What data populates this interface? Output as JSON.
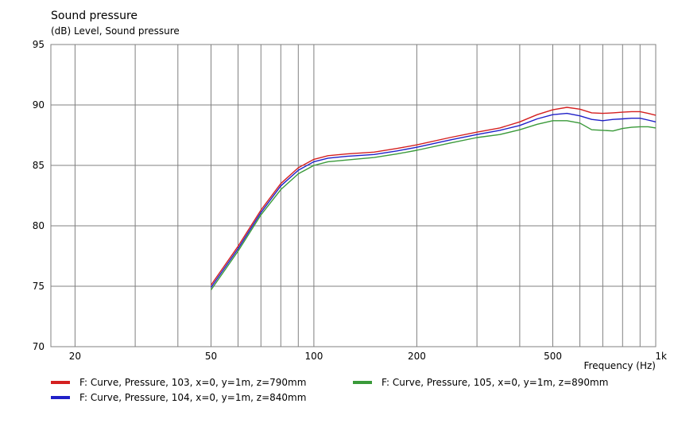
{
  "chart_data": {
    "type": "line",
    "title": "Sound pressure",
    "subtitle": "(dB)  Level, Sound pressure",
    "xlabel": "Frequency  (Hz)",
    "xscale": "log",
    "xlim": [
      17,
      1000
    ],
    "ylim": [
      70,
      95
    ],
    "grid": true,
    "legend_position": "bottom",
    "x_ticks": [
      {
        "value": 20,
        "label": "20"
      },
      {
        "value": 50,
        "label": "50"
      },
      {
        "value": 100,
        "label": "100"
      },
      {
        "value": 200,
        "label": "200"
      },
      {
        "value": 500,
        "label": "500"
      },
      {
        "value": 1000,
        "label": "1k"
      }
    ],
    "y_ticks": [
      {
        "value": 70,
        "label": "70"
      },
      {
        "value": 75,
        "label": "75"
      },
      {
        "value": 80,
        "label": "80"
      },
      {
        "value": 85,
        "label": "85"
      },
      {
        "value": 90,
        "label": "90"
      },
      {
        "value": 95,
        "label": "95"
      }
    ],
    "x_gridlines": [
      20,
      30,
      40,
      50,
      60,
      70,
      80,
      90,
      100,
      200,
      300,
      400,
      500,
      600,
      700,
      800,
      900
    ],
    "series": [
      {
        "name": "F: Curve, Pressure, 103, x=0, y=1m, z=790mm",
        "color": "#d42020",
        "points": [
          [
            50,
            75.1
          ],
          [
            60,
            78.3
          ],
          [
            70,
            81.3
          ],
          [
            80,
            83.5
          ],
          [
            90,
            84.8
          ],
          [
            100,
            85.5
          ],
          [
            110,
            85.8
          ],
          [
            125,
            85.95
          ],
          [
            150,
            86.1
          ],
          [
            175,
            86.4
          ],
          [
            200,
            86.7
          ],
          [
            250,
            87.3
          ],
          [
            300,
            87.75
          ],
          [
            350,
            88.1
          ],
          [
            400,
            88.6
          ],
          [
            450,
            89.2
          ],
          [
            500,
            89.6
          ],
          [
            550,
            89.8
          ],
          [
            600,
            89.65
          ],
          [
            650,
            89.35
          ],
          [
            700,
            89.3
          ],
          [
            750,
            89.35
          ],
          [
            800,
            89.4
          ],
          [
            850,
            89.45
          ],
          [
            900,
            89.45
          ],
          [
            950,
            89.3
          ],
          [
            1000,
            89.15
          ]
        ]
      },
      {
        "name": "F: Curve, Pressure, 104, x=0, y=1m, z=840mm",
        "color": "#2020c8",
        "points": [
          [
            50,
            74.9
          ],
          [
            60,
            78.1
          ],
          [
            70,
            81.1
          ],
          [
            80,
            83.3
          ],
          [
            90,
            84.6
          ],
          [
            100,
            85.3
          ],
          [
            110,
            85.6
          ],
          [
            125,
            85.75
          ],
          [
            150,
            85.9
          ],
          [
            175,
            86.2
          ],
          [
            200,
            86.5
          ],
          [
            250,
            87.1
          ],
          [
            300,
            87.55
          ],
          [
            350,
            87.9
          ],
          [
            400,
            88.3
          ],
          [
            450,
            88.85
          ],
          [
            500,
            89.2
          ],
          [
            550,
            89.3
          ],
          [
            600,
            89.1
          ],
          [
            650,
            88.8
          ],
          [
            700,
            88.7
          ],
          [
            750,
            88.8
          ],
          [
            800,
            88.85
          ],
          [
            850,
            88.9
          ],
          [
            900,
            88.9
          ],
          [
            950,
            88.75
          ],
          [
            1000,
            88.6
          ]
        ]
      },
      {
        "name": "F: Curve, Pressure, 105, x=0, y=1m, z=890mm",
        "color": "#3a9a3a",
        "points": [
          [
            50,
            74.7
          ],
          [
            60,
            77.9
          ],
          [
            70,
            80.9
          ],
          [
            80,
            83.0
          ],
          [
            90,
            84.3
          ],
          [
            100,
            85.0
          ],
          [
            110,
            85.3
          ],
          [
            125,
            85.45
          ],
          [
            150,
            85.65
          ],
          [
            175,
            85.95
          ],
          [
            200,
            86.25
          ],
          [
            250,
            86.85
          ],
          [
            300,
            87.3
          ],
          [
            350,
            87.55
          ],
          [
            400,
            87.95
          ],
          [
            450,
            88.4
          ],
          [
            500,
            88.7
          ],
          [
            550,
            88.7
          ],
          [
            600,
            88.5
          ],
          [
            650,
            87.95
          ],
          [
            700,
            87.9
          ],
          [
            750,
            87.85
          ],
          [
            800,
            88.05
          ],
          [
            850,
            88.15
          ],
          [
            900,
            88.2
          ],
          [
            950,
            88.2
          ],
          [
            1000,
            88.1
          ]
        ]
      }
    ]
  }
}
